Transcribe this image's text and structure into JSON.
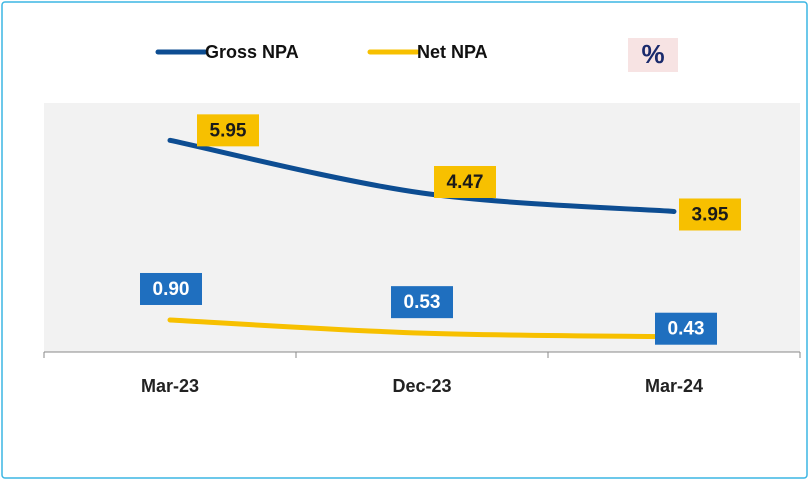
{
  "chart_data": {
    "type": "line",
    "annotation": "%",
    "categories": [
      "Mar-23",
      "Dec-23",
      "Mar-24"
    ],
    "series": [
      {
        "name": "Gross NPA",
        "color": "#0d4d92",
        "values": [
          5.95,
          4.47,
          3.95
        ]
      },
      {
        "name": "Net NPA",
        "color": "#f7c000",
        "values": [
          0.9,
          0.53,
          0.43
        ],
        "value_labels": [
          "0.90",
          "0.53",
          "0.43"
        ]
      }
    ],
    "ylim": [
      0,
      7
    ]
  }
}
